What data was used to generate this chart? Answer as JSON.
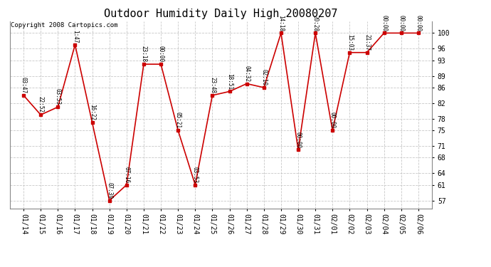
{
  "title": "Outdoor Humidity Daily High 20080207",
  "copyright": "Copyright 2008 Cartopics.com",
  "x_labels": [
    "01/14",
    "01/15",
    "01/16",
    "01/17",
    "01/18",
    "01/19",
    "01/20",
    "01/21",
    "01/22",
    "01/23",
    "01/24",
    "01/25",
    "01/26",
    "01/27",
    "01/28",
    "01/29",
    "01/30",
    "01/31",
    "02/01",
    "02/02",
    "02/03",
    "02/04",
    "02/05",
    "02/06"
  ],
  "y_values": [
    84,
    79,
    81,
    97,
    77,
    57,
    61,
    92,
    92,
    75,
    61,
    84,
    85,
    87,
    86,
    100,
    70,
    100,
    75,
    95,
    95,
    100,
    100,
    100
  ],
  "point_labels": [
    "03:47",
    "22:52",
    "03:53",
    "1:47",
    "16:22",
    "07:39",
    "07:16",
    "23:18",
    "00:00",
    "05:21",
    "03:53",
    "23:48",
    "18:51",
    "04:32",
    "02:10",
    "14:18",
    "00:00",
    "20:28",
    "00:00",
    "15:03",
    "21:37",
    "00:00",
    "00:00",
    "00:00"
  ],
  "yticks": [
    57,
    61,
    64,
    68,
    71,
    75,
    78,
    82,
    86,
    89,
    93,
    96,
    100
  ],
  "ylim_min": 55,
  "ylim_max": 103,
  "line_color": "#cc0000",
  "bg_color": "#ffffff",
  "grid_color": "#c8c8c8",
  "title_fontsize": 11,
  "label_fontsize": 5.5,
  "tick_fontsize": 7,
  "copyright_fontsize": 6.5
}
